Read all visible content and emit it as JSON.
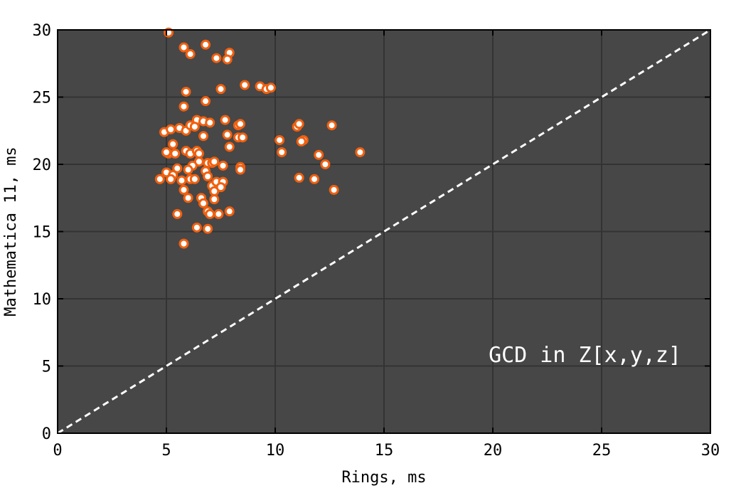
{
  "chart_data": {
    "type": "scatter",
    "xlabel": "Rings, ms",
    "ylabel": "Mathematica 11, ms",
    "annotation": "GCD in Z[x,y,z]",
    "xlim": [
      0,
      30
    ],
    "ylim": [
      0,
      30
    ],
    "xticks": [
      "0",
      "5",
      "10",
      "15",
      "20",
      "25",
      "30"
    ],
    "yticks": [
      "0",
      "5",
      "10",
      "15",
      "20",
      "25",
      "30"
    ],
    "grid": true,
    "reference_line": {
      "from": [
        0,
        0
      ],
      "to": [
        30,
        30
      ],
      "style": "dashed"
    },
    "colors": {
      "background": "#474747",
      "grid": "#333333",
      "point_fill": "#ffffff",
      "point_stroke": "#f06010",
      "reference_line": "#ffffff"
    },
    "points": [
      [
        5.1,
        29.8
      ],
      [
        5.8,
        28.7
      ],
      [
        6.8,
        28.9
      ],
      [
        6.1,
        28.2
      ],
      [
        7.9,
        28.3
      ],
      [
        7.3,
        27.9
      ],
      [
        7.8,
        27.8
      ],
      [
        7.5,
        25.6
      ],
      [
        8.6,
        25.9
      ],
      [
        9.3,
        25.8
      ],
      [
        9.6,
        25.6
      ],
      [
        9.8,
        25.7
      ],
      [
        5.9,
        25.4
      ],
      [
        6.8,
        24.7
      ],
      [
        5.8,
        24.3
      ],
      [
        6.4,
        23.3
      ],
      [
        6.7,
        23.2
      ],
      [
        7.0,
        23.1
      ],
      [
        7.7,
        23.3
      ],
      [
        8.3,
        22.9
      ],
      [
        8.4,
        23.0
      ],
      [
        4.9,
        22.4
      ],
      [
        5.2,
        22.6
      ],
      [
        5.6,
        22.7
      ],
      [
        5.9,
        22.5
      ],
      [
        6.1,
        22.9
      ],
      [
        6.3,
        22.8
      ],
      [
        6.7,
        22.1
      ],
      [
        7.8,
        22.2
      ],
      [
        8.3,
        22.0
      ],
      [
        8.5,
        22.0
      ],
      [
        5.3,
        21.5
      ],
      [
        5.1,
        20.8
      ],
      [
        5.4,
        20.8
      ],
      [
        5.9,
        21.0
      ],
      [
        6.1,
        20.8
      ],
      [
        6.4,
        21.0
      ],
      [
        6.5,
        20.8
      ],
      [
        7.9,
        21.3
      ],
      [
        5.0,
        20.9
      ],
      [
        6.5,
        20.2
      ],
      [
        6.9,
        20.1
      ],
      [
        7.1,
        20.1
      ],
      [
        7.2,
        20.2
      ],
      [
        6.2,
        19.9
      ],
      [
        5.5,
        19.7
      ],
      [
        6.0,
        19.6
      ],
      [
        6.8,
        19.5
      ],
      [
        7.6,
        19.9
      ],
      [
        8.4,
        19.8
      ],
      [
        8.4,
        19.6
      ],
      [
        5.0,
        19.4
      ],
      [
        5.3,
        19.2
      ],
      [
        4.7,
        18.9
      ],
      [
        5.2,
        18.9
      ],
      [
        6.1,
        18.9
      ],
      [
        6.3,
        18.9
      ],
      [
        5.7,
        18.8
      ],
      [
        6.9,
        19.1
      ],
      [
        7.1,
        18.4
      ],
      [
        7.3,
        18.7
      ],
      [
        7.6,
        18.7
      ],
      [
        7.5,
        18.3
      ],
      [
        5.8,
        18.1
      ],
      [
        6.6,
        17.5
      ],
      [
        7.2,
        18.0
      ],
      [
        6.0,
        17.5
      ],
      [
        6.7,
        17.1
      ],
      [
        7.2,
        17.4
      ],
      [
        5.5,
        16.3
      ],
      [
        6.9,
        16.5
      ],
      [
        7.0,
        16.3
      ],
      [
        7.4,
        16.3
      ],
      [
        7.9,
        16.5
      ],
      [
        6.4,
        15.3
      ],
      [
        6.9,
        15.2
      ],
      [
        5.8,
        14.1
      ],
      [
        10.2,
        21.8
      ],
      [
        10.3,
        20.9
      ],
      [
        11.0,
        22.8
      ],
      [
        11.1,
        23.0
      ],
      [
        11.3,
        21.8
      ],
      [
        11.2,
        21.7
      ],
      [
        12.6,
        22.9
      ],
      [
        13.9,
        20.9
      ],
      [
        12.0,
        20.7
      ],
      [
        12.3,
        20.0
      ],
      [
        11.1,
        19.0
      ],
      [
        11.8,
        18.9
      ],
      [
        12.7,
        18.1
      ]
    ]
  }
}
